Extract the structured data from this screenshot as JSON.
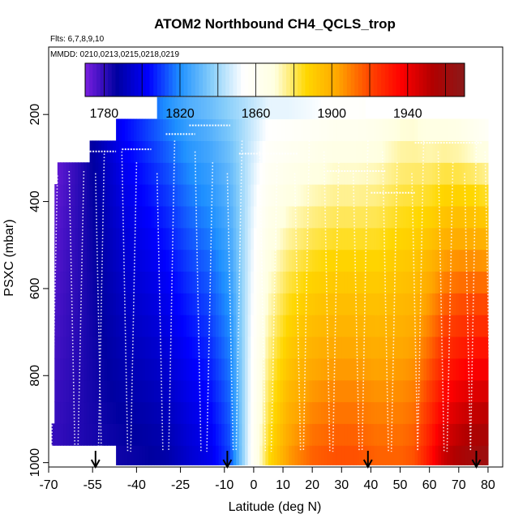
{
  "chart_data": {
    "type": "heatmap",
    "title": "ATOM2 Northbound CH4_QCLS_trop",
    "flights_label": "Flts: 6,7,8,9,10",
    "dates_label": "MMDD: 0210,0213,0215,0218,0219",
    "xlabel": "Latitude (deg N)",
    "ylabel": "PSXC (mbar)",
    "xlim": [
      -70,
      85
    ],
    "ylim": [
      1010,
      45
    ],
    "x_ticks": [
      -70,
      -55,
      -40,
      -25,
      -10,
      0,
      10,
      20,
      30,
      40,
      50,
      60,
      70,
      80
    ],
    "x_tick_labels": [
      "-70",
      "-55",
      "-40",
      "-25",
      "-10",
      "0",
      "10",
      "20",
      "30",
      "40",
      "50",
      "60",
      "70",
      "80"
    ],
    "y_ticks": [
      200,
      400,
      600,
      800,
      1000
    ],
    "y_tick_labels": [
      "200",
      "400",
      "600",
      "800",
      "1000"
    ],
    "colorbar": {
      "min": 1770,
      "max": 1970,
      "ticks": [
        1780,
        1820,
        1860,
        1900,
        1940
      ],
      "tick_labels": [
        "1780",
        "1820",
        "1860",
        "1900",
        "1940"
      ],
      "dividers": [
        1800,
        1840,
        1880,
        1920,
        1960
      ],
      "colors": [
        "#7a1fe0",
        "#0000a0",
        "#0000ff",
        "#1e90ff",
        "#87cefa",
        "#ffffff",
        "#ffffe0",
        "#ffd700",
        "#ffa500",
        "#ff4500",
        "#ff0000",
        "#b00000",
        "#8b1a1a"
      ]
    },
    "grid": false,
    "profile_latitudes": [
      -54,
      -9,
      39,
      76
    ],
    "pressure_levels": [
      980,
      935,
      885,
      835,
      785,
      735,
      685,
      635,
      585,
      535,
      485,
      435,
      385,
      335,
      285,
      235,
      185
    ],
    "latitude_anchors": [
      -68,
      -60,
      -52,
      -45,
      -38,
      -30,
      -22,
      -15,
      -8,
      0,
      5,
      12,
      20,
      28,
      35,
      42,
      50,
      55,
      60,
      65,
      70,
      75,
      80
    ],
    "surface_ch4": [
      1780,
      1782,
      1784,
      1785,
      1786,
      1788,
      1795,
      1800,
      1812,
      1860,
      1885,
      1905,
      1915,
      1918,
      1918,
      1915,
      1915,
      1918,
      1932,
      1948,
      1955,
      1960,
      1962
    ],
    "upper_ch4": [
      1770,
      1780,
      1792,
      1805,
      1812,
      1820,
      1828,
      1832,
      1838,
      1845,
      1850,
      1850,
      1852,
      1855,
      1855,
      1858,
      1865,
      1865,
      1860,
      1858,
      1855,
      1850,
      1845
    ],
    "coverage": {
      "latitude_start": [
        -69,
        -68,
        -67,
        -64,
        -56,
        -47,
        -33
      ],
      "pressure_top": [
        935,
        355,
        320,
        310,
        270,
        230,
        160
      ]
    }
  }
}
